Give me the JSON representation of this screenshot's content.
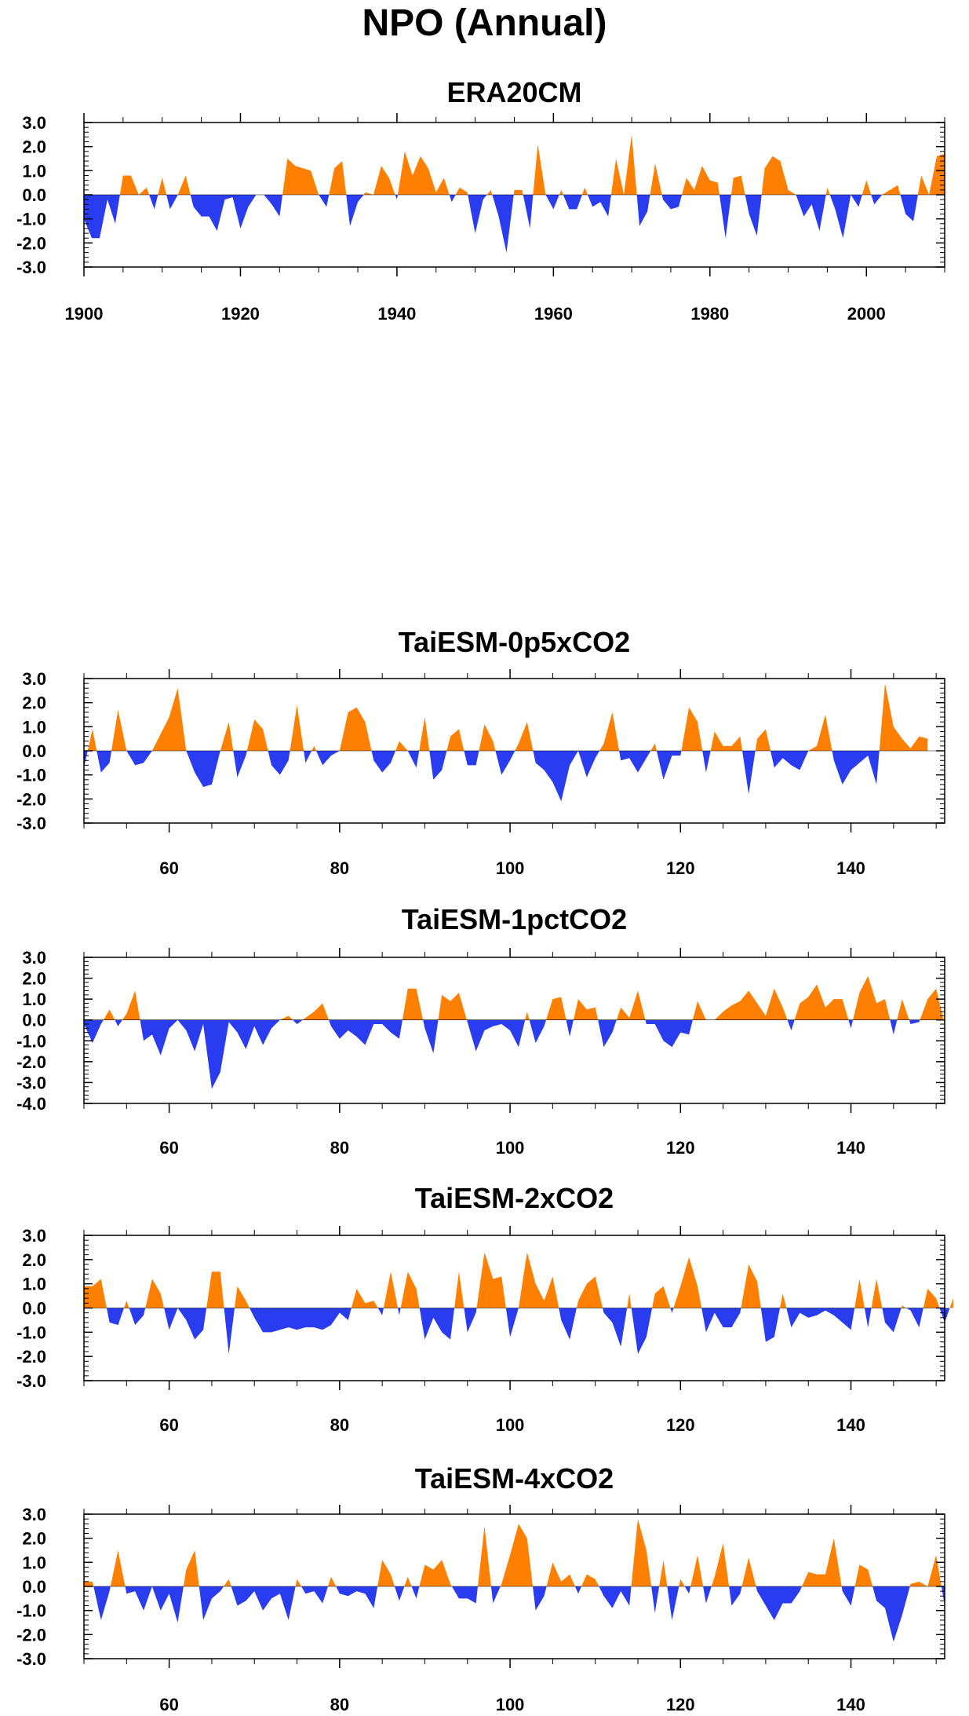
{
  "title": "NPO (Annual)",
  "colors": {
    "positive": "#FF8000",
    "negative": "#2A3CF0",
    "axis": "#000000"
  },
  "chart_data": [
    {
      "type": "area",
      "title": "ERA20CM",
      "xlim": [
        1900,
        2010
      ],
      "ylim": [
        -3,
        3
      ],
      "xticks": [
        1900,
        1920,
        1940,
        1960,
        1980,
        2000
      ],
      "yticks": [
        3,
        2,
        1,
        0,
        -1,
        -2,
        -3
      ],
      "ytick_labels": [
        "3.0",
        "2.0",
        "1.0",
        "0.0",
        "-1.0",
        "-2.0",
        "-3.0"
      ],
      "x_start": 1900,
      "values": [
        -1.0,
        -1.8,
        -1.8,
        -0.2,
        -1.2,
        0.8,
        0.8,
        0.0,
        0.3,
        -0.6,
        0.7,
        -0.6,
        0.0,
        0.8,
        -0.5,
        -0.9,
        -0.9,
        -1.5,
        -0.2,
        -0.1,
        -1.4,
        -0.5,
        0.0,
        0.0,
        -0.4,
        -0.9,
        1.5,
        1.2,
        1.1,
        1.0,
        0.0,
        -0.5,
        1.1,
        1.4,
        -1.3,
        -0.3,
        0.1,
        0.0,
        1.2,
        0.7,
        -0.2,
        1.8,
        0.8,
        1.6,
        1.1,
        0.1,
        0.7,
        -0.3,
        0.3,
        0.1,
        -1.6,
        -0.2,
        0.2,
        -0.9,
        -2.4,
        0.2,
        0.2,
        -1.4,
        2.1,
        0.0,
        -0.6,
        0.2,
        -0.6,
        -0.6,
        0.3,
        -0.5,
        -0.3,
        -0.9,
        1.5,
        0.0,
        2.5,
        -1.3,
        -0.7,
        1.3,
        -0.2,
        -0.6,
        -0.5,
        0.7,
        0.2,
        1.2,
        0.6,
        0.5,
        -1.8,
        0.7,
        0.8,
        -0.8,
        -1.7,
        1.1,
        1.6,
        1.4,
        0.2,
        0.0,
        -0.9,
        -0.4,
        -1.5,
        0.3,
        -0.6,
        -1.8,
        0.0,
        -0.5,
        0.6,
        -0.4,
        0.0,
        0.2,
        0.4,
        -0.8,
        -1.1,
        0.8,
        0.0,
        1.6,
        1.7
      ]
    },
    {
      "type": "area",
      "title": "TaiESM-0p5xCO2",
      "xlim": [
        50,
        151
      ],
      "ylim": [
        -3,
        3
      ],
      "xticks": [
        60,
        80,
        100,
        120,
        140
      ],
      "yticks": [
        3,
        2,
        1,
        0,
        -1,
        -2,
        -3
      ],
      "ytick_labels": [
        "3.0",
        "2.0",
        "1.0",
        "0.0",
        "-1.0",
        "-2.0",
        "-3.0"
      ],
      "x_start": 50,
      "values": [
        -0.7,
        0.9,
        -0.9,
        -0.5,
        1.7,
        0.0,
        -0.6,
        -0.5,
        0.0,
        0.7,
        1.4,
        2.6,
        0.0,
        -0.9,
        -1.5,
        -1.4,
        0.0,
        1.2,
        -1.1,
        -0.2,
        1.3,
        0.9,
        -0.6,
        -1.0,
        -0.4,
        1.9,
        -0.5,
        0.2,
        -0.6,
        -0.2,
        0.0,
        1.6,
        1.8,
        1.2,
        -0.4,
        -0.9,
        -0.5,
        0.4,
        0.0,
        -0.7,
        1.4,
        -1.2,
        -0.8,
        0.6,
        0.9,
        -0.6,
        -0.6,
        1.1,
        0.4,
        -1.0,
        -0.4,
        0.3,
        1.2,
        -0.5,
        -0.8,
        -1.3,
        -2.1,
        -0.6,
        0.0,
        -1.1,
        -0.3,
        0.3,
        1.6,
        -0.4,
        -0.3,
        -0.9,
        -0.3,
        0.3,
        -1.2,
        -0.2,
        -0.2,
        1.8,
        1.2,
        -0.9,
        0.8,
        0.2,
        0.2,
        0.6,
        -1.8,
        0.5,
        0.9,
        -0.7,
        -0.3,
        -0.6,
        -0.8,
        0.0,
        0.2,
        1.5,
        -0.4,
        -1.4,
        -0.8,
        -0.5,
        -0.2,
        -1.4,
        2.8,
        1.0,
        0.5,
        0.1,
        0.6,
        0.5
      ]
    },
    {
      "type": "area",
      "title": "TaiESM-1pctCO2",
      "xlim": [
        50,
        151
      ],
      "ylim": [
        -4,
        3
      ],
      "xticks": [
        60,
        80,
        100,
        120,
        140
      ],
      "yticks": [
        3,
        2,
        1,
        0,
        -1,
        -2,
        -3,
        -4
      ],
      "ytick_labels": [
        "3.0",
        "2.0",
        "1.0",
        "0.0",
        "-1.0",
        "-2.0",
        "-3.0",
        "-4.0"
      ],
      "x_start": 50,
      "values": [
        -0.2,
        -1.1,
        -0.2,
        0.5,
        -0.3,
        0.3,
        1.4,
        -1.0,
        -0.7,
        -1.7,
        -0.4,
        0.0,
        -0.5,
        -1.5,
        -0.2,
        -3.3,
        -2.5,
        -0.1,
        -0.6,
        -1.4,
        -0.3,
        -1.2,
        -0.4,
        0.0,
        0.2,
        -0.2,
        0.1,
        0.4,
        0.8,
        -0.3,
        -0.9,
        -0.5,
        -0.8,
        -1.2,
        -0.2,
        -0.2,
        -0.6,
        -0.9,
        1.5,
        1.5,
        -0.4,
        -1.6,
        1.2,
        0.9,
        1.3,
        -0.1,
        -1.5,
        -0.5,
        -0.3,
        -0.2,
        -0.5,
        -1.3,
        0.4,
        -1.1,
        -0.3,
        1.0,
        1.1,
        -0.8,
        1.0,
        0.5,
        0.6,
        -1.3,
        -0.6,
        0.6,
        0.1,
        1.4,
        -0.2,
        -0.2,
        -1.0,
        -1.3,
        -0.6,
        -0.7,
        0.9,
        0.0,
        0.0,
        0.4,
        0.7,
        0.9,
        1.4,
        0.8,
        0.2,
        1.5,
        0.6,
        -0.5,
        0.8,
        1.1,
        1.7,
        0.6,
        1.0,
        1.0,
        -0.4,
        1.3,
        2.1,
        0.8,
        1.0,
        -0.7,
        1.0,
        -0.2,
        -0.1,
        1.0,
        1.5,
        -0.2
      ]
    },
    {
      "type": "area",
      "title": "TaiESM-2xCO2",
      "xlim": [
        50,
        151
      ],
      "ylim": [
        -3,
        3
      ],
      "xticks": [
        60,
        80,
        100,
        120,
        140
      ],
      "yticks": [
        3,
        2,
        1,
        0,
        -1,
        -2,
        -3
      ],
      "ytick_labels": [
        "3.0",
        "2.0",
        "1.0",
        "0.0",
        "-1.0",
        "-2.0",
        "-3.0"
      ],
      "x_start": 50,
      "values": [
        0.9,
        0.9,
        1.2,
        -0.6,
        -0.7,
        0.3,
        -0.7,
        -0.3,
        1.2,
        0.6,
        -0.9,
        0.0,
        -0.5,
        -1.3,
        -0.9,
        1.5,
        1.5,
        -1.9,
        0.9,
        0.3,
        -0.4,
        -1.0,
        -1.0,
        -0.9,
        -0.8,
        -0.9,
        -0.8,
        -0.8,
        -0.9,
        -0.7,
        -0.2,
        -0.5,
        0.8,
        0.2,
        0.3,
        -0.3,
        1.5,
        -0.3,
        1.5,
        0.8,
        -1.3,
        -0.4,
        -1.0,
        -1.3,
        1.5,
        -1.0,
        -0.2,
        2.3,
        1.2,
        1.3,
        -1.2,
        0.0,
        2.3,
        1.0,
        0.3,
        1.3,
        -0.5,
        -1.3,
        0.3,
        1.0,
        1.3,
        -0.2,
        -0.6,
        -1.6,
        0.6,
        -1.9,
        -1.2,
        0.6,
        0.9,
        -0.2,
        0.9,
        2.1,
        0.9,
        -1.0,
        -0.2,
        -0.8,
        -0.8,
        -0.2,
        1.8,
        1.1,
        -1.4,
        -1.2,
        0.6,
        -0.8,
        -0.2,
        -0.4,
        -0.3,
        -0.1,
        -0.3,
        -0.6,
        -0.9,
        1.2,
        -0.8,
        1.2,
        -0.6,
        -1.0,
        0.1,
        -0.1,
        -0.8,
        0.8,
        0.4,
        -0.6,
        0.4
      ]
    },
    {
      "type": "area",
      "title": "TaiESM-4xCO2",
      "xlim": [
        50,
        151
      ],
      "ylim": [
        -3,
        3
      ],
      "xticks": [
        60,
        80,
        100,
        120,
        140
      ],
      "yticks": [
        3,
        2,
        1,
        0,
        -1,
        -2,
        -3
      ],
      "ytick_labels": [
        "3.0",
        "2.0",
        "1.0",
        "0.0",
        "-1.0",
        "-2.0",
        "-3.0"
      ],
      "x_start": 50,
      "values": [
        0.2,
        0.2,
        -1.4,
        -0.2,
        1.5,
        -0.3,
        -0.2,
        -1.0,
        0.0,
        -1.0,
        -0.3,
        -1.5,
        0.7,
        1.5,
        -1.4,
        -0.5,
        -0.2,
        0.3,
        -0.8,
        -0.6,
        -0.2,
        -1.0,
        -0.5,
        -0.3,
        -1.4,
        0.3,
        -0.3,
        -0.2,
        -0.7,
        0.4,
        -0.3,
        -0.4,
        -0.2,
        -0.3,
        -0.9,
        1.1,
        0.5,
        -0.6,
        0.4,
        -0.5,
        0.9,
        0.7,
        1.1,
        0.1,
        -0.5,
        -0.5,
        -0.7,
        2.5,
        -0.7,
        0.1,
        1.3,
        2.6,
        2.0,
        -1.0,
        -0.4,
        1.0,
        0.2,
        0.5,
        -0.3,
        0.5,
        0.3,
        -0.4,
        -0.9,
        -0.2,
        -0.8,
        2.8,
        1.5,
        -1.1,
        1.1,
        -1.4,
        0.3,
        -0.3,
        1.3,
        -0.7,
        0.4,
        1.8,
        -0.8,
        -0.3,
        1.2,
        -0.2,
        -0.8,
        -1.4,
        -0.7,
        -0.7,
        -0.2,
        0.6,
        0.5,
        0.5,
        2.0,
        -0.2,
        -0.8,
        0.9,
        0.7,
        -0.6,
        -0.9,
        -2.3,
        -1.2,
        0.1,
        0.2,
        0.0,
        1.3,
        -0.8
      ]
    }
  ]
}
